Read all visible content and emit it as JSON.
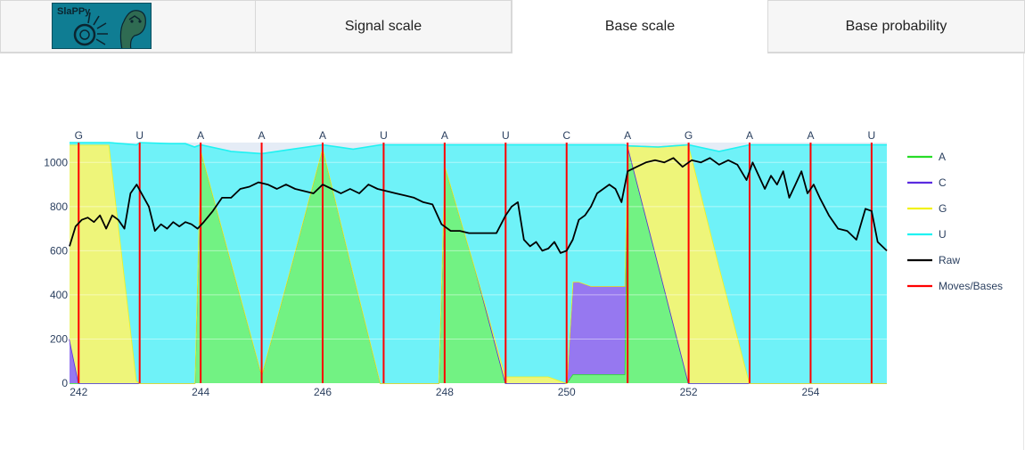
{
  "tabs": [
    {
      "label": "",
      "active": false,
      "kind": "logo"
    },
    {
      "label": "Signal scale",
      "active": false
    },
    {
      "label": "Base scale",
      "active": true
    },
    {
      "label": "Base probability",
      "active": false
    }
  ],
  "logo": {
    "text": "SlaPPy",
    "colors": {
      "background": "#0f7d93",
      "ink": "#0b2530",
      "snake": "#2f6b52"
    }
  },
  "chart_data": {
    "type": "area",
    "xlim": [
      241.85,
      255.25
    ],
    "ylim": [
      0,
      1090
    ],
    "xticks": [
      242,
      244,
      246,
      248,
      250,
      252,
      254
    ],
    "yticks": [
      0,
      200,
      400,
      600,
      800,
      1000
    ],
    "grid": true,
    "legend_position": "right",
    "base_letters": [
      "G",
      "U",
      "A",
      "A",
      "A",
      "U",
      "A",
      "U",
      "C",
      "A",
      "G",
      "A",
      "A",
      "U"
    ],
    "moves_x": [
      242,
      243,
      244,
      245,
      246,
      247,
      248,
      249,
      250,
      251,
      252,
      253,
      254,
      255
    ],
    "series_colors": {
      "A": "#72f283",
      "C": "#9678f0",
      "G": "#eef57a",
      "U": "#6ff2f8",
      "Raw": "#000000",
      "Moves/Bases": "#ff0000"
    },
    "line_colors": {
      "A": "#28dc28",
      "C": "#5b2be0",
      "G": "#f2f21a",
      "U": "#1ff2f2"
    },
    "x": [
      241.85,
      242,
      242.5,
      242.95,
      243,
      243.5,
      243.75,
      243.9,
      244,
      244.5,
      245,
      245.5,
      246,
      246.5,
      246.95,
      247,
      247.4,
      247.6,
      247.9,
      248,
      248.5,
      249,
      249.4,
      249.7,
      250,
      250.1,
      250.2,
      250.4,
      250.8,
      250.95,
      251,
      251.5,
      252,
      252.5,
      253,
      253.5,
      254,
      254.5,
      254.95,
      255.25
    ],
    "series": [
      {
        "name": "A",
        "values": [
          0,
          0,
          0,
          0,
          0,
          0,
          0,
          0,
          1060,
          550,
          40,
          550,
          1070,
          500,
          0,
          0,
          0,
          0,
          0,
          990,
          520,
          0,
          0,
          0,
          0,
          40,
          40,
          40,
          40,
          40,
          1075,
          540,
          0,
          0,
          0,
          0,
          0,
          0,
          0,
          0
        ]
      },
      {
        "name": "C",
        "values": [
          200,
          0,
          0,
          0,
          0,
          0,
          0,
          0,
          0,
          0,
          0,
          0,
          0,
          0,
          0,
          0,
          0,
          0,
          0,
          0,
          0,
          0,
          0,
          0,
          0,
          420,
          420,
          400,
          400,
          400,
          0,
          0,
          0,
          0,
          0,
          0,
          0,
          0,
          0,
          0
        ]
      },
      {
        "name": "G",
        "values": [
          880,
          1080,
          1080,
          10,
          0,
          0,
          0,
          0,
          0,
          0,
          0,
          0,
          0,
          0,
          0,
          0,
          0,
          0,
          0,
          0,
          0,
          30,
          30,
          30,
          0,
          0,
          0,
          0,
          0,
          0,
          0,
          530,
          1080,
          530,
          0,
          0,
          0,
          0,
          0,
          0
        ]
      },
      {
        "name": "U",
        "values": [
          10,
          10,
          10,
          1070,
          1090,
          1085,
          1085,
          1070,
          20,
          500,
          1000,
          510,
          10,
          560,
          1080,
          1080,
          1080,
          1080,
          1080,
          90,
          560,
          1050,
          1050,
          1050,
          1080,
          620,
          620,
          640,
          640,
          640,
          0,
          0,
          0,
          520,
          1080,
          1080,
          1080,
          1080,
          1080,
          1080
        ]
      }
    ],
    "legend": [
      "A",
      "C",
      "G",
      "U",
      "Raw",
      "Moves/Bases"
    ],
    "raw_x": [
      241.85,
      241.95,
      242.05,
      242.15,
      242.25,
      242.35,
      242.45,
      242.55,
      242.65,
      242.75,
      242.85,
      242.95,
      243.05,
      243.15,
      243.25,
      243.35,
      243.45,
      243.55,
      243.65,
      243.75,
      243.85,
      243.95,
      244.05,
      244.2,
      244.35,
      244.5,
      244.65,
      244.8,
      244.95,
      245.1,
      245.25,
      245.4,
      245.55,
      245.7,
      245.85,
      246.0,
      246.15,
      246.3,
      246.45,
      246.6,
      246.75,
      246.9,
      247.05,
      247.2,
      247.35,
      247.5,
      247.65,
      247.8,
      247.95,
      248.1,
      248.25,
      248.4,
      248.55,
      248.7,
      248.85,
      249.0,
      249.1,
      249.2,
      249.3,
      249.4,
      249.5,
      249.6,
      249.7,
      249.8,
      249.9,
      250.0,
      250.1,
      250.2,
      250.3,
      250.4,
      250.5,
      250.6,
      250.7,
      250.8,
      250.9,
      251.0,
      251.15,
      251.3,
      251.45,
      251.6,
      251.75,
      251.9,
      252.05,
      252.2,
      252.35,
      252.5,
      252.65,
      252.8,
      252.95,
      253.05,
      253.15,
      253.25,
      253.35,
      253.45,
      253.55,
      253.65,
      253.75,
      253.85,
      253.95,
      254.05,
      254.15,
      254.3,
      254.45,
      254.6,
      254.75,
      254.9,
      255.0,
      255.1,
      255.25
    ],
    "raw_y": [
      620,
      710,
      740,
      750,
      730,
      760,
      700,
      760,
      740,
      700,
      860,
      900,
      850,
      800,
      690,
      720,
      700,
      730,
      710,
      730,
      720,
      700,
      730,
      780,
      840,
      840,
      880,
      890,
      910,
      900,
      880,
      900,
      880,
      870,
      860,
      900,
      880,
      860,
      880,
      860,
      900,
      880,
      870,
      860,
      850,
      840,
      820,
      810,
      720,
      690,
      690,
      680,
      680,
      680,
      680,
      760,
      800,
      820,
      650,
      620,
      640,
      600,
      610,
      640,
      590,
      600,
      650,
      740,
      760,
      800,
      860,
      880,
      900,
      880,
      820,
      960,
      980,
      1000,
      1010,
      1000,
      1020,
      980,
      1010,
      1000,
      1020,
      990,
      1010,
      990,
      920,
      1000,
      940,
      880,
      940,
      900,
      960,
      840,
      900,
      960,
      860,
      900,
      840,
      760,
      700,
      690,
      650,
      790,
      780,
      640,
      600
    ]
  }
}
